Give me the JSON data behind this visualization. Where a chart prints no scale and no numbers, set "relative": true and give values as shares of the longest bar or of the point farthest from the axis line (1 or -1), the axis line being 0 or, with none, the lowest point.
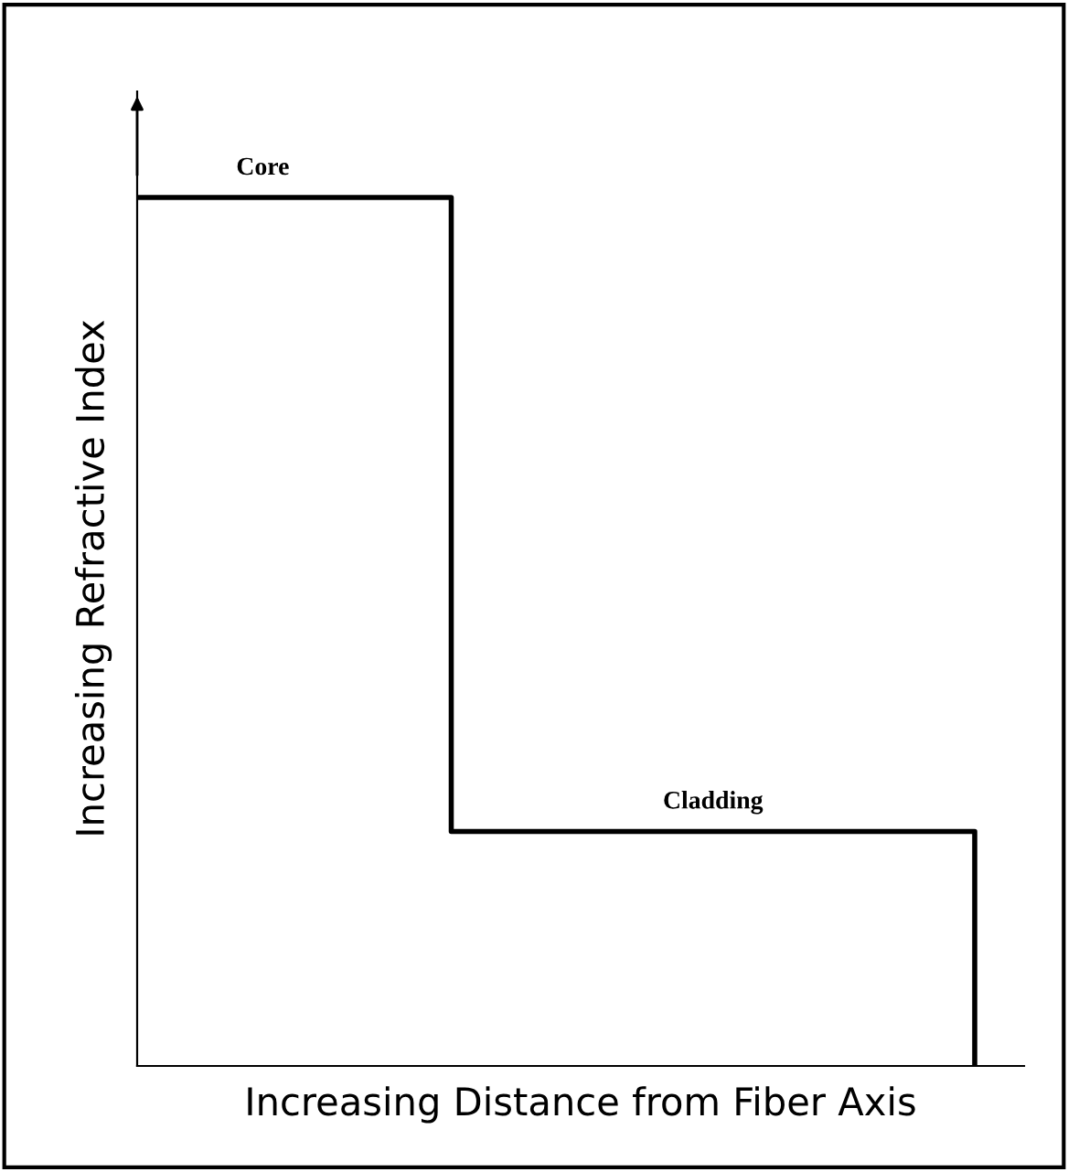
{
  "chart_data": {
    "type": "step",
    "relative": true,
    "xlabel": "Increasing Distance from Fiber Axis",
    "ylabel": "Increasing Refractive Index",
    "categories": [
      null,
      null,
      null,
      null,
      null,
      null,
      null,
      null,
      null
    ],
    "series": [
      {
        "color": "#000000",
        "values": [
          1,
          1,
          1,
          0.27,
          0.27,
          0.27,
          0.27,
          0.27,
          0
        ]
      }
    ],
    "annotations": [
      "Core",
      "Cladding"
    ],
    "legend": false,
    "marker": "none",
    "line_style": "solid"
  }
}
